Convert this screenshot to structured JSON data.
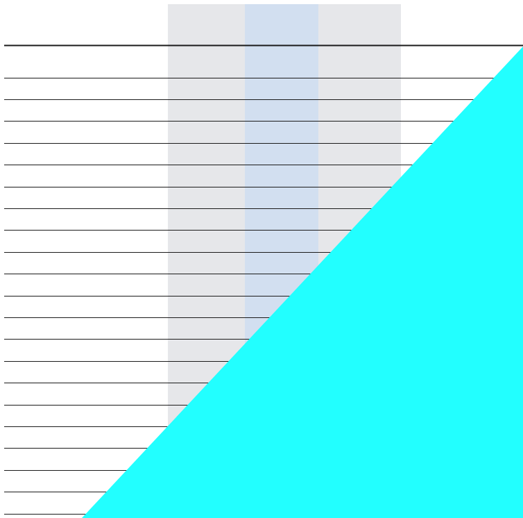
{
  "colors": {
    "background": "#ffffff",
    "column_band": "#e6e7ea",
    "highlight_column": "#d2dff0",
    "line": "#1a1a1a",
    "overlay": "#22ffff"
  },
  "table": {
    "row_count": 21,
    "highlighted_column": 2
  }
}
